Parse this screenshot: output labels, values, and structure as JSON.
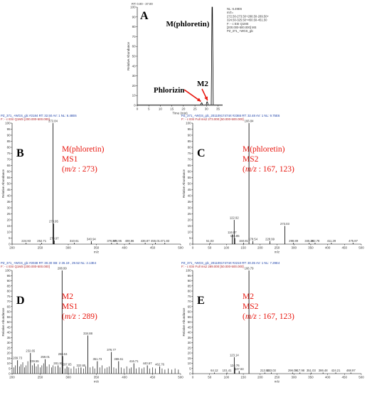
{
  "colors": {
    "peak": "#000000",
    "axis": "#000000",
    "annotation_red": "#e8170f",
    "header_blue": "#1a3fa8",
    "header_red": "#b0242a",
    "arrow": "#e8170f"
  },
  "chart_data": [
    {
      "id": "A",
      "type": "line",
      "panel_letter": "A",
      "header": "RT: 0.00 - 37.00",
      "info_lines": [
        "NL: 6.49E6",
        "m/z=",
        "272.50-273.50+288.50-289.50+",
        "324.50-325.50+450.50-451.50",
        "F: - c ESI Q1MS",
        "[200.000-500.000]  MS",
        "PZ_371_+WGS_glc"
      ],
      "xlabel": "Time (min)",
      "ylabel": "Relative Abundance",
      "xlim": [
        0,
        37
      ],
      "ylim": [
        0,
        100
      ],
      "xticks": [
        0,
        5,
        10,
        15,
        20,
        25,
        30,
        35
      ],
      "yticks": [
        0,
        10,
        20,
        30,
        40,
        50,
        60,
        70,
        80,
        90,
        100
      ],
      "peaks": [
        {
          "x": 27.9,
          "y": 2.5
        },
        {
          "x": 30.3,
          "y": 3.5
        },
        {
          "x": 32.5,
          "y": 100
        }
      ],
      "annotations": [
        {
          "text": "M(phloretin)",
          "x": 32.5,
          "y": 100
        },
        {
          "text": "Phlorizin",
          "x": 27.9,
          "y": 2.5
        },
        {
          "text": "M2",
          "x": 30.3,
          "y": 3.5
        }
      ]
    },
    {
      "id": "B",
      "type": "bar",
      "panel_letter": "B",
      "header": "PZ_371_+WGS_glc #2184   RT: 32.50   AV: 1   NL: 6.48E6",
      "subheader": "F: - c ESI Q1MS  [200.000-500.000]",
      "xlabel": "m/z",
      "ylabel": "Relative Abundance",
      "xlim": [
        200,
        500
      ],
      "ylim": [
        0,
        100
      ],
      "xticks": [
        200,
        250,
        300,
        350,
        400,
        450,
        500
      ],
      "yticks": [
        0,
        5,
        10,
        15,
        20,
        25,
        30,
        35,
        40,
        45,
        50,
        55,
        60,
        65,
        70,
        75,
        80,
        85,
        90,
        95,
        100
      ],
      "annotation_lines": [
        "M(phloretin)",
        "MS1",
        "(m/z : 273)"
      ],
      "peaks": [
        {
          "mz": "224.93",
          "x": 224.93,
          "y": 1.0
        },
        {
          "mz": "252.71",
          "x": 252.71,
          "y": 1.0
        },
        {
          "mz": "272.84",
          "x": 272.84,
          "y": 100
        },
        {
          "mz": "273.95",
          "x": 273.95,
          "y": 17
        },
        {
          "mz": "274.97",
          "x": 274.97,
          "y": 3
        },
        {
          "mz": "310.61",
          "x": 310.61,
          "y": 1.0
        },
        {
          "mz": "340.94",
          "x": 340.94,
          "y": 2.5
        },
        {
          "mz": "376.97",
          "x": 376.97,
          "y": 1.0
        },
        {
          "mz": "386.95",
          "x": 386.95,
          "y": 1.0
        },
        {
          "mz": "408.86",
          "x": 408.86,
          "y": 1.0
        },
        {
          "mz": "436.87",
          "x": 436.87,
          "y": 1.0
        },
        {
          "mz": "455.01",
          "x": 455.01,
          "y": 1.0
        },
        {
          "mz": "471.83",
          "x": 471.83,
          "y": 1.0
        }
      ]
    },
    {
      "id": "C",
      "type": "bar",
      "panel_letter": "C",
      "header": "PZ_371_+WGS_glc_20110917474rt #2365   RT: 32.48   AV: 1   NL: 9.75E6",
      "subheader": "F: - c ESI Full ms2 273.000 [50.000-500.000]",
      "xlabel": "m/z",
      "ylabel": "Relative Abundance",
      "xlim": [
        0,
        500
      ],
      "ylim": [
        0,
        100
      ],
      "xticks": [
        0,
        50,
        100,
        150,
        200,
        250,
        300,
        350,
        400,
        450,
        500
      ],
      "yticks": [
        0,
        5,
        10,
        15,
        20,
        25,
        30,
        35,
        40,
        45,
        50,
        55,
        60,
        65,
        70,
        75,
        80,
        85,
        90,
        95,
        100
      ],
      "annotation_lines": [
        "M(phloretin)",
        "MS2",
        "(m/z : 167, 123)"
      ],
      "peaks": [
        {
          "mz": "51.03",
          "x": 51.03,
          "y": 1.0
        },
        {
          "mz": "116.87",
          "x": 116.87,
          "y": 8
        },
        {
          "mz": "122.92",
          "x": 122.92,
          "y": 20
        },
        {
          "mz": "124.85",
          "x": 124.85,
          "y": 5
        },
        {
          "mz": "150.81",
          "x": 150.81,
          "y": 1.0
        },
        {
          "mz": "166.84",
          "x": 166.84,
          "y": 100
        },
        {
          "mz": "178.54",
          "x": 178.54,
          "y": 2.5
        },
        {
          "mz": "228.99",
          "x": 228.99,
          "y": 2.5
        },
        {
          "mz": "273.03",
          "x": 273.03,
          "y": 15
        },
        {
          "mz": "298.89",
          "x": 298.89,
          "y": 1.0
        },
        {
          "mz": "345.48",
          "x": 345.48,
          "y": 1.0
        },
        {
          "mz": "362.78",
          "x": 362.78,
          "y": 1.0
        },
        {
          "mz": "411.29",
          "x": 411.29,
          "y": 1.0
        },
        {
          "mz": "475.87",
          "x": 475.87,
          "y": 1.0
        }
      ]
    },
    {
      "id": "D",
      "type": "bar",
      "panel_letter": "D",
      "header": "PZ_371_+WGS_glc #2038   RT: 30.30   SB: 2  26.19 , 29.52   NL: 2.13E4",
      "subheader": "F: - c ESI Q1MS  [200.000-500.000]",
      "xlabel": "m/z",
      "ylabel": "Relative Abundance",
      "xlim": [
        200,
        500
      ],
      "ylim": [
        0,
        100
      ],
      "xticks": [
        200,
        250,
        300,
        350,
        400,
        450,
        500
      ],
      "yticks": [
        0,
        5,
        10,
        15,
        20,
        25,
        30,
        35,
        40,
        45,
        50,
        55,
        60,
        65,
        70,
        75,
        80,
        85,
        90,
        95,
        100
      ],
      "annotation_lines": [
        "M2",
        "MS1",
        "(m/z : 289)"
      ],
      "peaks": [
        {
          "mz": "209.73",
          "x": 209.73,
          "y": 13
        },
        {
          "mz": "232.65",
          "x": 232.65,
          "y": 20
        },
        {
          "mz": "239.55",
          "x": 239.55,
          "y": 10
        },
        {
          "mz": "259.01",
          "x": 259.01,
          "y": 14
        },
        {
          "mz": "281.91",
          "x": 281.91,
          "y": 8
        },
        {
          "mz": "288.99",
          "x": 288.99,
          "y": 100
        },
        {
          "mz": "290.04",
          "x": 290.04,
          "y": 17
        },
        {
          "mz": "297.65",
          "x": 297.65,
          "y": 7
        },
        {
          "mz": "322.65",
          "x": 322.65,
          "y": 6
        },
        {
          "mz": "334.88",
          "x": 334.88,
          "y": 37
        },
        {
          "mz": "351.73",
          "x": 351.73,
          "y": 12
        },
        {
          "mz": "376.77",
          "x": 376.77,
          "y": 21
        },
        {
          "mz": "389.61",
          "x": 389.61,
          "y": 12
        },
        {
          "mz": "416.71",
          "x": 416.71,
          "y": 10
        },
        {
          "mz": "440.67",
          "x": 440.67,
          "y": 8
        },
        {
          "mz": "462.76",
          "x": 462.76,
          "y": 7
        }
      ],
      "noise_peaks": [
        {
          "x": 203,
          "y": 6
        },
        {
          "x": 206,
          "y": 8
        },
        {
          "x": 213,
          "y": 7
        },
        {
          "x": 216,
          "y": 9
        },
        {
          "x": 219,
          "y": 11
        },
        {
          "x": 222,
          "y": 6
        },
        {
          "x": 225,
          "y": 8
        },
        {
          "x": 228,
          "y": 12
        },
        {
          "x": 236,
          "y": 8
        },
        {
          "x": 243,
          "y": 7
        },
        {
          "x": 246,
          "y": 9
        },
        {
          "x": 250,
          "y": 6
        },
        {
          "x": 253,
          "y": 8
        },
        {
          "x": 256,
          "y": 10
        },
        {
          "x": 262,
          "y": 7
        },
        {
          "x": 266,
          "y": 9
        },
        {
          "x": 270,
          "y": 6
        },
        {
          "x": 273,
          "y": 8
        },
        {
          "x": 277,
          "y": 7
        },
        {
          "x": 285,
          "y": 6
        },
        {
          "x": 294,
          "y": 5
        },
        {
          "x": 301,
          "y": 6
        },
        {
          "x": 305,
          "y": 5
        },
        {
          "x": 310,
          "y": 7
        },
        {
          "x": 314,
          "y": 5
        },
        {
          "x": 318,
          "y": 6
        },
        {
          "x": 327,
          "y": 5
        },
        {
          "x": 331,
          "y": 7
        },
        {
          "x": 339,
          "y": 6
        },
        {
          "x": 344,
          "y": 7
        },
        {
          "x": 347,
          "y": 5
        },
        {
          "x": 356,
          "y": 6
        },
        {
          "x": 360,
          "y": 8
        },
        {
          "x": 365,
          "y": 5
        },
        {
          "x": 369,
          "y": 6
        },
        {
          "x": 373,
          "y": 7
        },
        {
          "x": 381,
          "y": 6
        },
        {
          "x": 385,
          "y": 5
        },
        {
          "x": 394,
          "y": 6
        },
        {
          "x": 399,
          "y": 5
        },
        {
          "x": 404,
          "y": 7
        },
        {
          "x": 409,
          "y": 5
        },
        {
          "x": 412,
          "y": 6
        },
        {
          "x": 421,
          "y": 5
        },
        {
          "x": 426,
          "y": 6
        },
        {
          "x": 431,
          "y": 5
        },
        {
          "x": 435,
          "y": 6
        },
        {
          "x": 445,
          "y": 5
        },
        {
          "x": 450,
          "y": 6
        },
        {
          "x": 455,
          "y": 5
        },
        {
          "x": 467,
          "y": 5
        },
        {
          "x": 472,
          "y": 4
        },
        {
          "x": 478,
          "y": 5
        },
        {
          "x": 484,
          "y": 4
        },
        {
          "x": 490,
          "y": 5
        },
        {
          "x": 496,
          "y": 4
        }
      ]
    },
    {
      "id": "E",
      "type": "bar",
      "panel_letter": "E",
      "header": "PZ_371_+WGS_glc_20110917474rt #2210   RT: 30.35   AV: 1   NL: 7.29E4",
      "subheader": "F: - c ESI Full ms2 289.000 [50.000-500.000]",
      "xlabel": "m/z",
      "ylabel": "Relative Abundance",
      "xlim": [
        0,
        500
      ],
      "ylim": [
        0,
        100
      ],
      "xticks": [
        0,
        50,
        100,
        150,
        200,
        250,
        300,
        350,
        400,
        450,
        500
      ],
      "yticks": [
        0,
        5,
        10,
        15,
        20,
        25,
        30,
        35,
        40,
        45,
        50,
        55,
        60,
        65,
        70,
        75,
        80,
        85,
        90,
        95,
        100
      ],
      "annotation_lines": [
        "M2",
        "MS2",
        "(m/z : 167, 123)"
      ],
      "peaks": [
        {
          "mz": "64.12",
          "x": 64.12,
          "y": 1.0
        },
        {
          "mz": "101.41",
          "x": 101.41,
          "y": 1.0
        },
        {
          "mz": "123.14",
          "x": 123.14,
          "y": 16
        },
        {
          "mz": "124.76",
          "x": 124.76,
          "y": 6
        },
        {
          "mz": "137.63",
          "x": 137.63,
          "y": 2.5
        },
        {
          "mz": "166.79",
          "x": 166.79,
          "y": 100
        },
        {
          "mz": "213.64",
          "x": 213.64,
          "y": 1.0
        },
        {
          "mz": "233.03",
          "x": 233.03,
          "y": 1.0
        },
        {
          "mz": "296.09",
          "x": 296.09,
          "y": 1.0
        },
        {
          "mz": "317.98",
          "x": 317.98,
          "y": 1.0
        },
        {
          "mz": "351.03",
          "x": 351.03,
          "y": 1.0
        },
        {
          "mz": "386.48",
          "x": 386.48,
          "y": 1.0
        },
        {
          "mz": "424.21",
          "x": 424.21,
          "y": 1.0
        },
        {
          "mz": "468.97",
          "x": 468.97,
          "y": 1.0
        }
      ]
    }
  ]
}
